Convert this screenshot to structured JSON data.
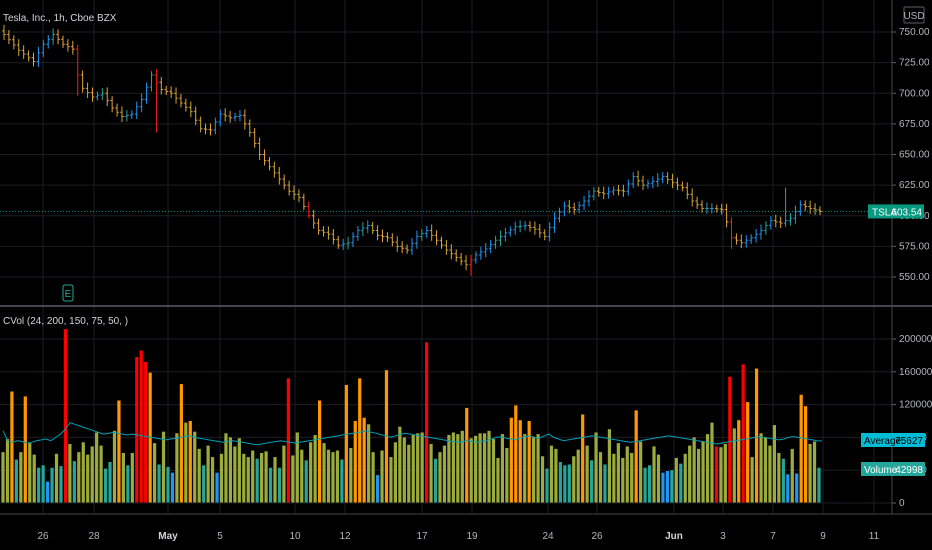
{
  "header": {
    "symbol_title": "Tesla, Inc., 1h, Cboe BZX",
    "currency_button": "USD"
  },
  "indicator": {
    "label": "CVol (24, 200, 150, 75, 50, )"
  },
  "colors": {
    "background": "#000000",
    "grid": "#1c1e25",
    "bull": "#2196f3",
    "bear": "#e6a23c",
    "accent_teal": "#26a69a",
    "tsla_tag": "#089981",
    "avg_tag": "#00bcd4",
    "ma_line": "#00a0b8",
    "vol_red": "#ff0000",
    "vol_orange": "#ff9800",
    "vol_olive": "#9cab3c",
    "vol_green": "#26a69a",
    "vol_blue": "#2196f3"
  },
  "chart_data": [
    {
      "type": "candlestick",
      "title": "Tesla, Inc., 1h, Cboe BZX",
      "ylim": [
        540,
        755
      ],
      "yticks": [
        550,
        575,
        600,
        625,
        650,
        675,
        700,
        725,
        750
      ],
      "ytick_labels": [
        "550.00",
        "575.00",
        "600.00",
        "625.00",
        "650.00",
        "675.00",
        "700.00",
        "725.00",
        "750.00"
      ],
      "last_price": 603.54,
      "last_price_label": "TSLA",
      "last_price_text": "603.54",
      "earnings_marker": "E",
      "path": [
        [
          0,
          748
        ],
        [
          3,
          735
        ],
        [
          6,
          726
        ],
        [
          8,
          740
        ],
        [
          10,
          748
        ],
        [
          12,
          740
        ],
        [
          14,
          736
        ],
        [
          15,
          715
        ],
        [
          16,
          704
        ],
        [
          18,
          697
        ],
        [
          20,
          700
        ],
        [
          22,
          688
        ],
        [
          24,
          681
        ],
        [
          26,
          683
        ],
        [
          28,
          695
        ],
        [
          30,
          715
        ],
        [
          32,
          703
        ],
        [
          34,
          700
        ],
        [
          36,
          692
        ],
        [
          38,
          685
        ],
        [
          40,
          671
        ],
        [
          42,
          670
        ],
        [
          44,
          683
        ],
        [
          46,
          680
        ],
        [
          48,
          682
        ],
        [
          50,
          668
        ],
        [
          52,
          650
        ],
        [
          54,
          640
        ],
        [
          56,
          630
        ],
        [
          58,
          620
        ],
        [
          60,
          615
        ],
        [
          62,
          600
        ],
        [
          64,
          588
        ],
        [
          66,
          585
        ],
        [
          68,
          576
        ],
        [
          70,
          578
        ],
        [
          72,
          588
        ],
        [
          74,
          592
        ],
        [
          76,
          584
        ],
        [
          78,
          582
        ],
        [
          80,
          575
        ],
        [
          82,
          572
        ],
        [
          84,
          583
        ],
        [
          86,
          588
        ],
        [
          88,
          580
        ],
        [
          90,
          572
        ],
        [
          92,
          566
        ],
        [
          94,
          560
        ],
        [
          96,
          568
        ],
        [
          98,
          573
        ],
        [
          100,
          580
        ],
        [
          102,
          586
        ],
        [
          104,
          591
        ],
        [
          106,
          592
        ],
        [
          108,
          589
        ],
        [
          110,
          583
        ],
        [
          112,
          598
        ],
        [
          114,
          608
        ],
        [
          116,
          605
        ],
        [
          118,
          612
        ],
        [
          120,
          620
        ],
        [
          122,
          618
        ],
        [
          124,
          621
        ],
        [
          126,
          620
        ],
        [
          128,
          632
        ],
        [
          130,
          625
        ],
        [
          132,
          628
        ],
        [
          134,
          632
        ],
        [
          136,
          627
        ],
        [
          138,
          623
        ],
        [
          140,
          612
        ],
        [
          142,
          606
        ],
        [
          144,
          606
        ],
        [
          146,
          605
        ],
        [
          147,
          595
        ],
        [
          148,
          582
        ],
        [
          150,
          578
        ],
        [
          152,
          582
        ],
        [
          154,
          588
        ],
        [
          156,
          596
        ],
        [
          158,
          594
        ],
        [
          160,
          598
        ],
        [
          162,
          609
        ],
        [
          164,
          606
        ],
        [
          166,
          603.54
        ]
      ],
      "spikes": [
        {
          "i": 15,
          "low": 698
        },
        {
          "i": 30,
          "high": 718
        },
        {
          "i": 31,
          "low": 668
        },
        {
          "i": 62,
          "low": 598
        },
        {
          "i": 95,
          "low": 551
        },
        {
          "i": 148,
          "low": 573
        },
        {
          "i": 159,
          "high": 623
        }
      ],
      "red_candles": [
        15,
        31,
        62,
        95,
        148
      ]
    },
    {
      "type": "bar",
      "title": "CVol (24, 200, 150, 75, 50, )",
      "ylim": [
        -10000,
        215000
      ],
      "yticks": [
        0,
        40000,
        80000,
        120000,
        160000,
        200000
      ],
      "ytick_labels": [
        "0",
        "40000",
        "80000",
        "120000",
        "160000",
        "200000"
      ],
      "average_label": "Average",
      "average_value": "75627",
      "volume_label": "Volume",
      "volume_value": "42998",
      "values": [
        62000,
        78000,
        136000,
        53000,
        62000,
        130000,
        73000,
        59000,
        43000,
        46000,
        26000,
        43000,
        60000,
        45000,
        212000,
        72000,
        51000,
        62000,
        74000,
        59000,
        69000,
        86000,
        70000,
        42000,
        50000,
        88000,
        125000,
        61000,
        46000,
        61000,
        178000,
        186000,
        172000,
        159000,
        73000,
        47000,
        87000,
        44000,
        37000,
        85000,
        145000,
        98000,
        100000,
        87000,
        66000,
        46000,
        70000,
        56000,
        37000,
        60000,
        85000,
        80000,
        69000,
        79000,
        60000,
        56000,
        64000,
        54000,
        61000,
        63000,
        43000,
        56000,
        43000,
        70000,
        152000,
        58000,
        86000,
        65000,
        52000,
        74000,
        83000,
        125000,
        73000,
        65000,
        62000,
        64000,
        53000,
        144000,
        67000,
        100000,
        152000,
        104000,
        96000,
        62000,
        34000,
        64000,
        162000,
        56000,
        74000,
        93000,
        80000,
        71000,
        83000,
        85000,
        86000,
        196000,
        72000,
        54000,
        62000,
        70000,
        83000,
        86000,
        84000,
        88000,
        116000,
        79000,
        82000,
        85000,
        85000,
        88000,
        78000,
        55000,
        84000,
        67000,
        104000,
        119000,
        101000,
        84000,
        100000,
        80000,
        84000,
        57000,
        42000,
        70000,
        66000,
        50000,
        46000,
        47000,
        57000,
        65000,
        108000,
        70000,
        52000,
        86000,
        62000,
        47000,
        90000,
        60000,
        73000,
        55000,
        69000,
        61000,
        113000,
        75000,
        43000,
        46000,
        69000,
        59000,
        37000,
        39000,
        40000,
        55000,
        48000,
        60000,
        70000,
        80000,
        66000,
        75000,
        84000,
        98000,
        69000,
        68000,
        72000,
        154000,
        91000,
        101000,
        169000,
        123000,
        56000,
        164000,
        85000,
        80000,
        70000,
        95000,
        61000,
        54000,
        35000,
        66000,
        36000,
        132000,
        118000,
        72000,
        75000,
        43000
      ],
      "red_bars": [
        14,
        30,
        31,
        32,
        64,
        95,
        160,
        163,
        166
      ],
      "average_series": [
        88000,
        76000,
        74000,
        76000,
        75000,
        73000,
        74000,
        76000,
        77000,
        78000,
        76000,
        80000,
        84000,
        90000,
        98000,
        96000,
        94000,
        92000,
        90000,
        88000,
        86000,
        84000,
        85000,
        86000,
        85000,
        84000,
        83000,
        84000,
        83000,
        82000,
        81000,
        80000,
        79000,
        78000,
        77000,
        78000,
        79000,
        80000,
        81000,
        82000,
        80000,
        79000,
        78000,
        77000,
        76000,
        75000,
        74000,
        75000,
        76000,
        75000,
        74000,
        73000,
        72000,
        71000,
        72000,
        73000,
        74000,
        75000,
        76000,
        75000,
        74000,
        73000,
        74000,
        75000,
        76000,
        77000,
        78000,
        79000,
        80000,
        81000,
        82000,
        83000,
        84000,
        85000,
        86000,
        87000,
        88000,
        86000,
        85000,
        83000,
        82000,
        80000,
        82000,
        84000,
        85000,
        84000,
        83000,
        82000,
        81000,
        80000,
        79000,
        78000,
        77000,
        76000,
        75000,
        74000,
        75000,
        76000,
        75000,
        74000,
        75000,
        76000,
        78000,
        80000,
        81000,
        79000,
        78000,
        77000,
        79000,
        81000,
        82000,
        80000,
        79000,
        82000,
        84000,
        80000,
        78000,
        76000,
        77000,
        78000,
        79000,
        80000,
        81000,
        82000,
        81000,
        80000,
        79000,
        78000,
        77000,
        76000,
        75000,
        74000,
        75000,
        76000,
        77000,
        78000,
        79000,
        80000,
        81000,
        82000,
        81000,
        80000,
        79000,
        78000,
        77000,
        76000,
        75000,
        74000,
        73000,
        72000,
        73000,
        74000,
        75000,
        76000,
        77000,
        78000,
        79000,
        80000,
        81000,
        80000,
        79000,
        78000,
        77000,
        78000,
        80000,
        81000,
        80000,
        79000,
        78000,
        77000,
        76000,
        75627
      ]
    }
  ],
  "x_axis": {
    "ticks": [
      {
        "label": "26",
        "bold": false
      },
      {
        "label": "28",
        "bold": false
      },
      {
        "label": "May",
        "bold": true
      },
      {
        "label": "5",
        "bold": false
      },
      {
        "label": "10",
        "bold": false
      },
      {
        "label": "12",
        "bold": false
      },
      {
        "label": "17",
        "bold": false
      },
      {
        "label": "19",
        "bold": false
      },
      {
        "label": "24",
        "bold": false
      },
      {
        "label": "26",
        "bold": false
      },
      {
        "label": "Jun",
        "bold": true
      },
      {
        "label": "3",
        "bold": false
      },
      {
        "label": "7",
        "bold": false
      },
      {
        "label": "9",
        "bold": false
      },
      {
        "label": "11",
        "bold": false
      }
    ]
  }
}
